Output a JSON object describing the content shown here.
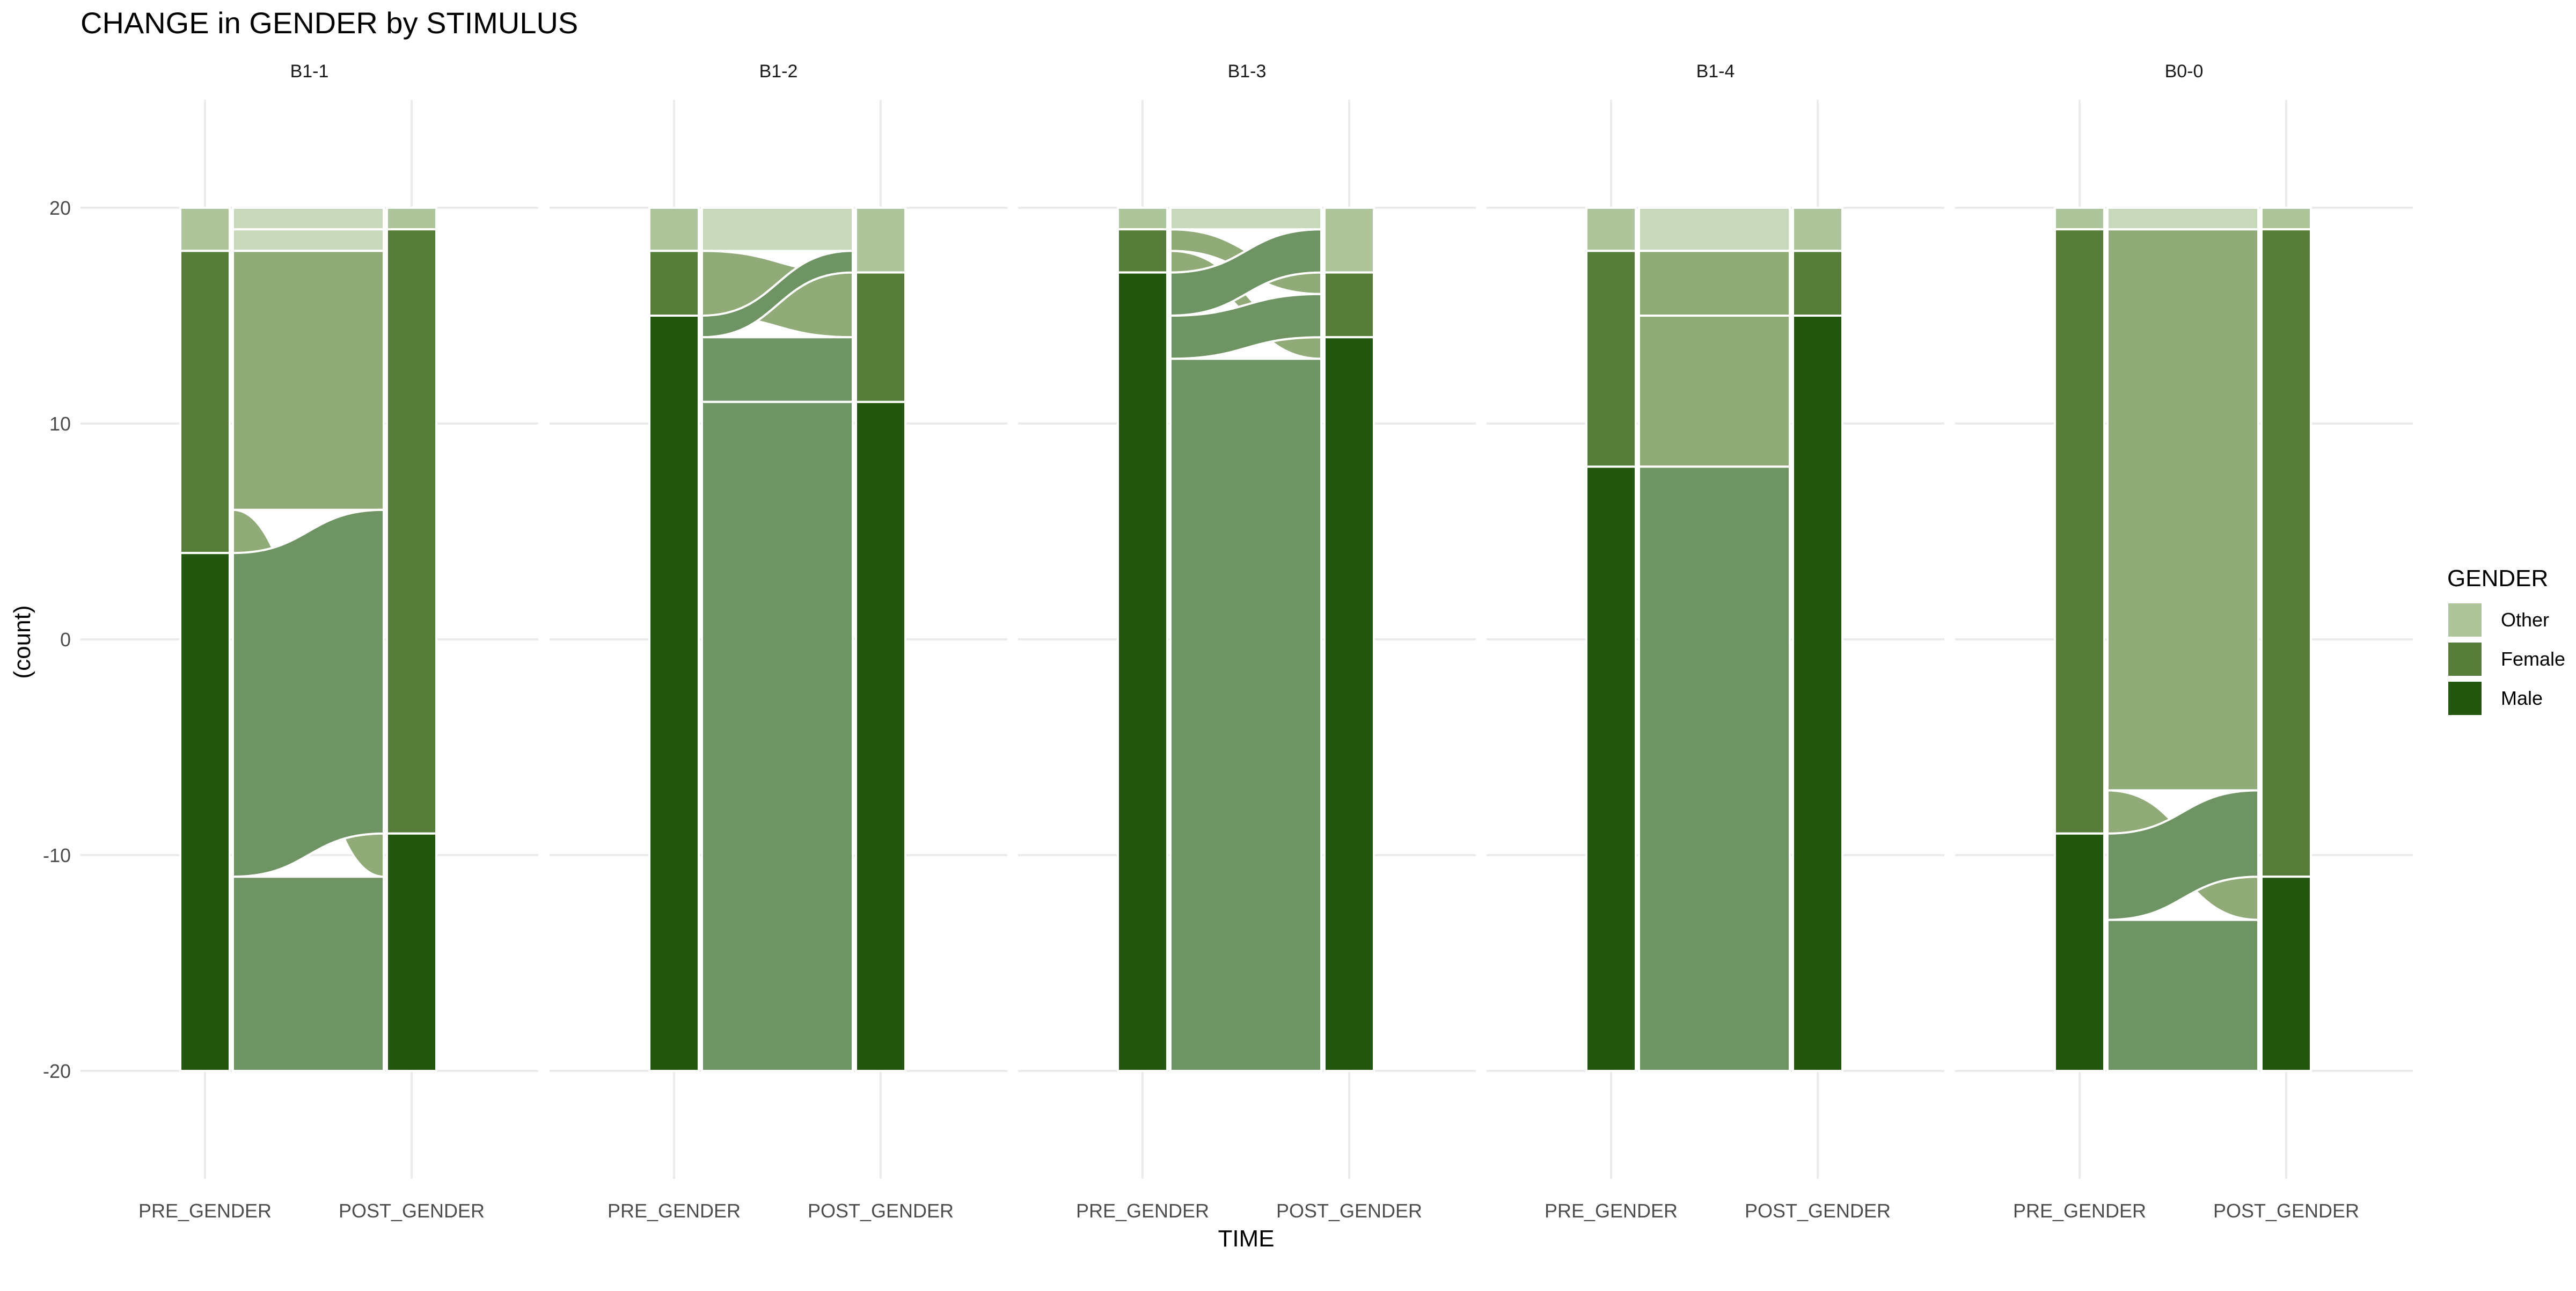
{
  "chart_data": {
    "type": "alluvial",
    "title": "CHANGE in GENDER by STIMULUS",
    "xlabel": "TIME",
    "ylabel": "(count)",
    "x_categories": [
      "PRE_GENDER",
      "POST_GENDER"
    ],
    "y_ticks": [
      -20,
      -10,
      0,
      10,
      20
    ],
    "ylim": [
      -25,
      25
    ],
    "grid": true,
    "legend": {
      "title": "GENDER",
      "position": "right",
      "entries": [
        "Other",
        "Female",
        "Male"
      ]
    },
    "colors": {
      "Other": "#aec59b",
      "Female": "#567d39",
      "Male": "#235710",
      "flow_Other": "#c8d8bb",
      "flow_Female": "#90aa78",
      "flow_Male": "#6f9463"
    },
    "panels": [
      {
        "facet": "B1-1",
        "pre": {
          "Other": 2,
          "Female": 14,
          "Male": 24
        },
        "post": {
          "Other": 1,
          "Female": 28,
          "Male": 11
        },
        "flows": [
          {
            "from": "Other",
            "to": "Other",
            "value": 1
          },
          {
            "from": "Other",
            "to": "Female",
            "value": 1
          },
          {
            "from": "Female",
            "to": "Female",
            "value": 12
          },
          {
            "from": "Female",
            "to": "Male",
            "value": 2
          },
          {
            "from": "Male",
            "to": "Female",
            "value": 15
          },
          {
            "from": "Male",
            "to": "Male",
            "value": 9
          }
        ]
      },
      {
        "facet": "B1-2",
        "pre": {
          "Other": 2,
          "Female": 3,
          "Male": 35
        },
        "post": {
          "Other": 3,
          "Female": 6,
          "Male": 31
        },
        "flows": [
          {
            "from": "Other",
            "to": "Other",
            "value": 2
          },
          {
            "from": "Female",
            "to": "Female",
            "value": 3
          },
          {
            "from": "Male",
            "to": "Other",
            "value": 1
          },
          {
            "from": "Male",
            "to": "Female",
            "value": 3
          },
          {
            "from": "Male",
            "to": "Male",
            "value": 31
          }
        ]
      },
      {
        "facet": "B1-3",
        "pre": {
          "Other": 1,
          "Female": 2,
          "Male": 37
        },
        "post": {
          "Other": 3,
          "Female": 3,
          "Male": 34
        },
        "flows": [
          {
            "from": "Other",
            "to": "Other",
            "value": 1
          },
          {
            "from": "Female",
            "to": "Female",
            "value": 1
          },
          {
            "from": "Female",
            "to": "Male",
            "value": 1
          },
          {
            "from": "Male",
            "to": "Other",
            "value": 2
          },
          {
            "from": "Male",
            "to": "Female",
            "value": 2
          },
          {
            "from": "Male",
            "to": "Male",
            "value": 33
          }
        ]
      },
      {
        "facet": "B1-4",
        "pre": {
          "Other": 2,
          "Female": 10,
          "Male": 28
        },
        "post": {
          "Other": 2,
          "Female": 3,
          "Male": 35
        },
        "flows": [
          {
            "from": "Other",
            "to": "Other",
            "value": 2
          },
          {
            "from": "Female",
            "to": "Female",
            "value": 3
          },
          {
            "from": "Female",
            "to": "Male",
            "value": 7
          },
          {
            "from": "Male",
            "to": "Male",
            "value": 28
          }
        ]
      },
      {
        "facet": "B0-0",
        "pre": {
          "Other": 1,
          "Female": 28,
          "Male": 11
        },
        "post": {
          "Other": 1,
          "Female": 30,
          "Male": 9
        },
        "flows": [
          {
            "from": "Other",
            "to": "Other",
            "value": 1
          },
          {
            "from": "Female",
            "to": "Female",
            "value": 26
          },
          {
            "from": "Female",
            "to": "Male",
            "value": 2
          },
          {
            "from": "Male",
            "to": "Female",
            "value": 4
          },
          {
            "from": "Male",
            "to": "Male",
            "value": 7
          }
        ]
      }
    ]
  }
}
